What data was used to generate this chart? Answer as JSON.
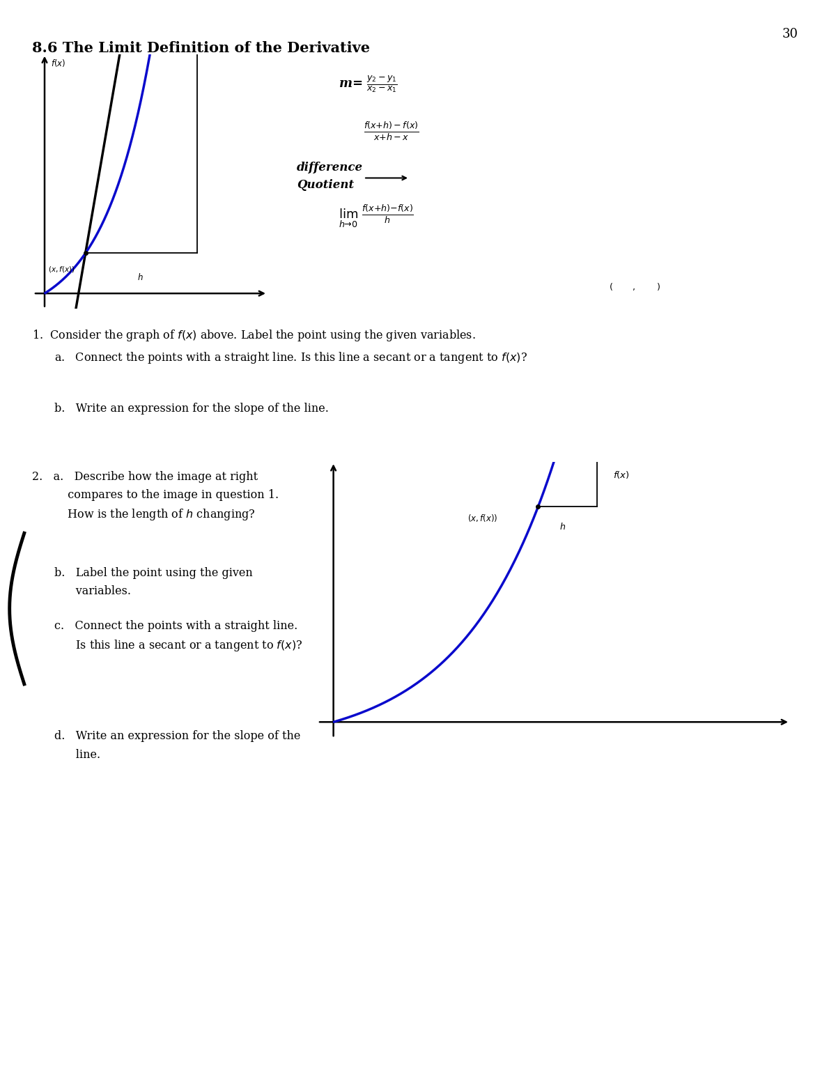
{
  "title": "8.6 The Limit Definition of the Derivative",
  "page_number": "30",
  "background_color": "#ffffff",
  "curve_color": "#0a0acc",
  "line_color": "#000000",
  "q1_text": "1.  Consider the graph of $f(x)$ above. Label the point using the given variables.",
  "q1a_text": "a.   Connect the points with a straight line. Is this line a secant or a tangent to $f(x)$?",
  "q1b_text": "b.   Write an expression for the slope of the line.",
  "q2a_text_l1": "2.   a.   Describe how the image at right",
  "q2a_text_l2": "          compares to the image in question 1.",
  "q2a_text_l3": "          How is the length of $h$ changing?",
  "q2b_text": "b.   Label the point using the given",
  "q2b_text2": "      variables.",
  "q2c_text_l1": "c.   Connect the points with a straight line.",
  "q2c_text_l2": "      Is this line a secant or a tangent to $f(x)$?",
  "q2d_text_l1": "d.   Write an expression for the slope of the",
  "q2d_text_l2": "      line.",
  "graph1_note1": "difference",
  "graph1_note2": "Quotient",
  "graph2_label_fx": "$f(x)$",
  "graph2_label_point1": "$(x, f(x))$",
  "graph2_label_h": "$h$",
  "graph2_blank": "$(\\quad\\quad\\quad,\\quad\\quad\\quad)$"
}
